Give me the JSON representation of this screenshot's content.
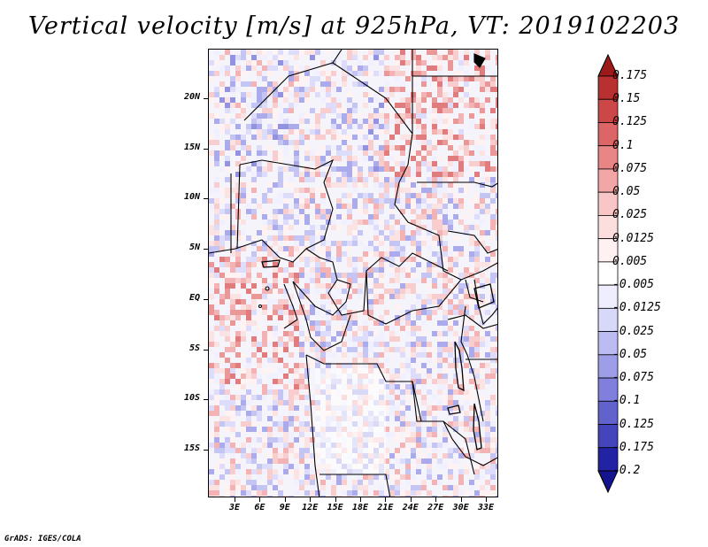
{
  "title": "Vertical velocity [m/s] at 925hPa, VT: 2019102203",
  "footer": "GrADS: IGES/COLA",
  "lat_labels": [
    "20N",
    "15N",
    "10N",
    "5N",
    "EQ",
    "5S",
    "10S",
    "15S"
  ],
  "lon_labels": [
    "3E",
    "6E",
    "9E",
    "12E",
    "15E",
    "18E",
    "21E",
    "24E",
    "27E",
    "30E",
    "33E"
  ],
  "colorbar": {
    "labels": [
      "0.175",
      "0.15",
      "0.125",
      "0.1",
      "0.075",
      "0.05",
      "0.025",
      "0.0125",
      "0.005",
      "-0.005",
      "-0.0125",
      "-0.025",
      "-0.05",
      "-0.075",
      "-0.1",
      "-0.125",
      "-0.175",
      "-0.2"
    ],
    "colors": [
      "#9e1a1a",
      "#b83030",
      "#cc4848",
      "#dc6666",
      "#e88686",
      "#f2a6a6",
      "#f8c6c6",
      "#fcdede",
      "#fff1f1",
      "#ffffff",
      "#eeeefe",
      "#d8d8fa",
      "#bcbcf2",
      "#9e9ee8",
      "#8080dc",
      "#6262cc",
      "#4444bb",
      "#2222a4",
      "#14148e"
    ]
  },
  "map_extent": {
    "lon_min": 0,
    "lon_max": 35,
    "lat_min": -20,
    "lat_max": 25
  }
}
